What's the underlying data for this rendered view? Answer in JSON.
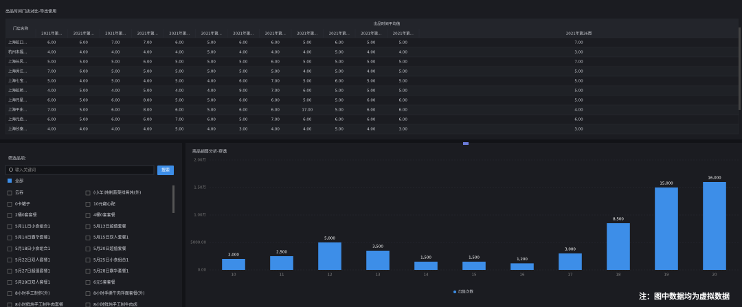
{
  "header": {
    "title": "出品时间门店对比-导出使用"
  },
  "table": {
    "first_column": "门店名称",
    "group": "出品时间平均值",
    "columns": [
      "2021年第...",
      "2021年第...",
      "2021年第...",
      "2021年第...",
      "2021年第...",
      "2021年第...",
      "2021年第...",
      "2021年第...",
      "2021年第...",
      "2021年第...",
      "2021年第...",
      "2021年第...",
      "2021年第26周"
    ],
    "rows": [
      {
        "name": "上海虹口...",
        "cells": [
          "6.00",
          "6.00",
          "7.00",
          "7.00",
          "6.00",
          "5.00",
          "6.00",
          "6.00",
          "5.00",
          "6.00",
          "5.00",
          "5.00",
          "7.00"
        ]
      },
      {
        "name": "杭州未福...",
        "cells": [
          "4.00",
          "4.00",
          "4.00",
          "4.00",
          "4.00",
          "5.00",
          "4.00",
          "4.00",
          "4.00",
          "5.00",
          "4.00",
          "4.00",
          "3.00"
        ]
      },
      {
        "name": "上海长风...",
        "cells": [
          "5.00",
          "5.00",
          "5.00",
          "6.00",
          "5.00",
          "5.00",
          "5.00",
          "6.00",
          "5.00",
          "5.00",
          "5.00",
          "5.00",
          "7.00"
        ]
      },
      {
        "name": "上海闵江...",
        "cells": [
          "7.00",
          "6.00",
          "5.00",
          "5.00",
          "5.00",
          "5.00",
          "5.00",
          "5.00",
          "4.00",
          "5.00",
          "4.00",
          "5.00",
          "5.00"
        ]
      },
      {
        "name": "上海七宝...",
        "cells": [
          "5.00",
          "4.00",
          "5.00",
          "4.00",
          "5.00",
          "4.00",
          "6.00",
          "7.00",
          "5.00",
          "6.00",
          "5.00",
          "5.00",
          "5.00"
        ]
      },
      {
        "name": "上海虹桥...",
        "cells": [
          "4.00",
          "5.00",
          "4.00",
          "5.00",
          "4.00",
          "4.00",
          "9.00",
          "7.00",
          "6.00",
          "5.00",
          "5.00",
          "5.00",
          "5.00"
        ]
      },
      {
        "name": "上海月星...",
        "cells": [
          "6.00",
          "5.00",
          "6.00",
          "8.00",
          "5.00",
          "5.00",
          "6.00",
          "6.00",
          "5.00",
          "5.00",
          "6.00",
          "6.00",
          "5.00"
        ]
      },
      {
        "name": "上海平庄...",
        "cells": [
          "7.00",
          "5.00",
          "6.00",
          "8.00",
          "6.00",
          "5.00",
          "6.00",
          "6.00",
          "17.00",
          "5.00",
          "6.00",
          "6.00",
          "4.00"
        ]
      },
      {
        "name": "上海元启...",
        "cells": [
          "6.00",
          "5.00",
          "6.00",
          "6.00",
          "7.00",
          "6.00",
          "5.00",
          "7.00",
          "6.00",
          "6.00",
          "6.00",
          "6.00",
          "6.00"
        ]
      },
      {
        "name": "上海长泰...",
        "cells": [
          "4.00",
          "4.00",
          "4.00",
          "4.00",
          "5.00",
          "4.00",
          "3.00",
          "4.00",
          "4.00",
          "5.00",
          "4.00",
          "3.00",
          "3.00"
        ]
      }
    ]
  },
  "filter": {
    "title": "筛选品项:",
    "search_placeholder": "输入关键词",
    "button": "搜索",
    "all": "全部",
    "items": [
      "云吞",
      "(小羊)炖制蔬菜排骨炖(外)",
      "0卡罐子",
      "10元翻心配",
      "2桶0套套餐",
      "4桶0套套餐",
      "5月11日小食组合1",
      "5月13日超值套餐",
      "5月14日霸华套餐1",
      "5月15日双人套餐1",
      "5月18日小食组合1",
      "5月20日超值套餐",
      "5月22日双人套餐1",
      "5月25日小食组合1",
      "5月27日超值套餐1",
      "5月28日霸华套餐1",
      "5月29日双人套餐1",
      "6元5套套餐",
      "8小时手工制作(外)",
      "8小时手撕牛肉拌面套餐(外)",
      "8小时鲜炖手工制牛肉套餐",
      "8小时鲜炖手工制牛肉卤"
    ]
  },
  "chart_data": {
    "type": "bar",
    "title": "商品销售分析-穿透",
    "categories": [
      "10",
      "11",
      "12",
      "13",
      "14",
      "15",
      "16",
      "17",
      "18",
      "19",
      "20"
    ],
    "values": [
      2000,
      2500,
      5000,
      3500,
      1500,
      1500,
      1200,
      3000,
      8500,
      15000,
      16000
    ],
    "value_labels": [
      "2,000",
      "2,500",
      "5,000",
      "3,500",
      "1,500",
      "1,500",
      "1,200",
      "3,000",
      "8,500",
      "15,000",
      "16,000"
    ],
    "color": "#3d8ee8",
    "ylim": [
      0,
      20000
    ],
    "yticks": [
      {
        "value": 0,
        "label": "0.00"
      },
      {
        "value": 5000,
        "label": "5000.00"
      },
      {
        "value": 10000,
        "label": "1.00万"
      },
      {
        "value": 15000,
        "label": "1.50万"
      },
      {
        "value": 20000,
        "label": "2.00万"
      }
    ],
    "grid": true,
    "legend": "出售次数"
  },
  "note": "注：图中数据均为虚拟数据"
}
